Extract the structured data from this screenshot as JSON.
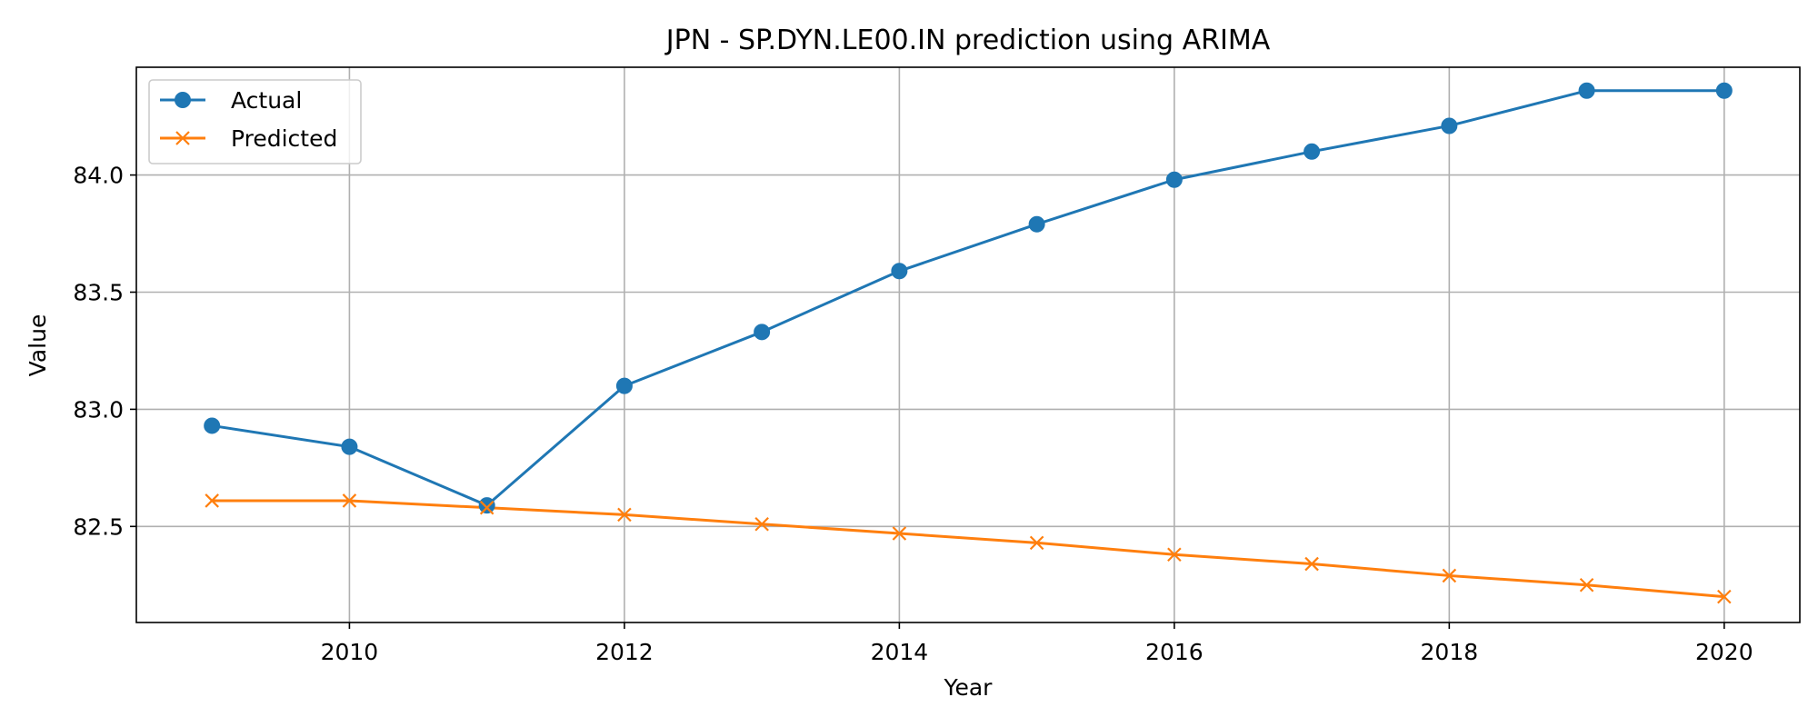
{
  "chart_data": {
    "type": "line",
    "title": "JPN - SP.DYN.LE00.IN prediction using ARIMA",
    "xlabel": "Year",
    "ylabel": "Value",
    "x": [
      2009,
      2010,
      2011,
      2012,
      2013,
      2014,
      2015,
      2016,
      2017,
      2018,
      2019,
      2020
    ],
    "xlim": [
      2008.45,
      2020.55
    ],
    "ylim": [
      82.09,
      84.46
    ],
    "xticks": [
      2010,
      2012,
      2014,
      2016,
      2018,
      2020
    ],
    "yticks": [
      82.5,
      83.0,
      83.5,
      84.0
    ],
    "ytick_labels": [
      "82.5",
      "83.0",
      "83.5",
      "84.0"
    ],
    "grid": true,
    "legend_position": "upper left",
    "series": [
      {
        "name": "Actual",
        "color": "#1f77b4",
        "marker": "circle",
        "values": [
          82.93,
          82.84,
          82.59,
          83.1,
          83.33,
          83.59,
          83.79,
          83.98,
          84.1,
          84.21,
          84.36,
          84.36
        ]
      },
      {
        "name": "Predicted",
        "color": "#ff7f0e",
        "marker": "x",
        "values": [
          82.61,
          82.61,
          82.58,
          82.55,
          82.51,
          82.47,
          82.43,
          82.38,
          82.34,
          82.29,
          82.25,
          82.2
        ]
      }
    ]
  }
}
